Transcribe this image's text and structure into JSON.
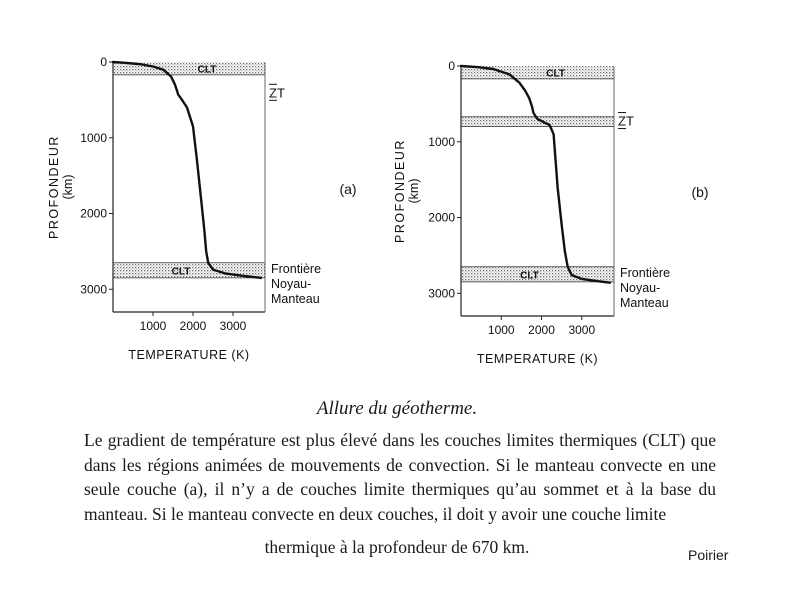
{
  "chart_data": [
    {
      "type": "line",
      "panel_label": "(a)",
      "ylabel": "PROFONDEUR",
      "yunit": "(km)",
      "xlabel": "TEMPERATURE  (K)",
      "xlim": [
        0,
        3800
      ],
      "ylim": [
        0,
        3300
      ],
      "xticks": [
        1000,
        2000,
        3000
      ],
      "xtick_labels": [
        "1000",
        "2000",
        "3000"
      ],
      "yticks": [
        0,
        1000,
        2000,
        3000
      ],
      "ytick_labels": [
        "0",
        "1000",
        "2000",
        "3000"
      ],
      "bands": [
        {
          "label": "CLT",
          "from": 0,
          "to": 170
        },
        {
          "label": "CLT",
          "from": 2650,
          "to": 2850
        }
      ],
      "annotations": {
        "zt": "ZT",
        "zt_depth": 400,
        "boundary": [
          "Frontière",
          "Noyau-",
          "Manteau"
        ],
        "boundary_depth": 2890
      },
      "series": [
        {
          "name": "géotherme",
          "x": [
            0,
            300,
            700,
            1000,
            1250,
            1450,
            1550,
            1600,
            1630,
            1700,
            1850,
            2000,
            2100,
            2200,
            2280,
            2330,
            2380,
            2500,
            2800,
            3200,
            3700
          ],
          "y": [
            0,
            10,
            30,
            60,
            100,
            190,
            300,
            380,
            430,
            480,
            600,
            850,
            1300,
            1800,
            2200,
            2500,
            2650,
            2740,
            2790,
            2820,
            2850
          ]
        }
      ]
    },
    {
      "type": "line",
      "panel_label": "(b)",
      "ylabel": "PROFONDEUR",
      "yunit": "(km)",
      "xlabel": "TEMPERATURE  (K)",
      "xlim": [
        0,
        3800
      ],
      "ylim": [
        0,
        3300
      ],
      "xticks": [
        1000,
        2000,
        3000
      ],
      "xtick_labels": [
        "1000",
        "2000",
        "3000"
      ],
      "yticks": [
        0,
        1000,
        2000,
        3000
      ],
      "ytick_labels": [
        "0",
        "1000",
        "2000",
        "3000"
      ],
      "bands": [
        {
          "label": "CLT",
          "from": 0,
          "to": 170
        },
        {
          "label": "CLT",
          "from": 670,
          "to": 800
        },
        {
          "label": "CLT",
          "from": 2650,
          "to": 2850
        }
      ],
      "annotations": {
        "zt": "ZT",
        "zt_depth": 720,
        "boundary": [
          "Frontière",
          "Noyau-",
          "Manteau"
        ],
        "boundary_depth": 2890
      },
      "series": [
        {
          "name": "géotherme",
          "x": [
            0,
            400,
            800,
            1200,
            1450,
            1600,
            1700,
            1760,
            1800,
            1900,
            2050,
            2200,
            2300,
            2400,
            2500,
            2580,
            2650,
            2750,
            3000,
            3400,
            3700
          ],
          "y": [
            0,
            15,
            40,
            110,
            220,
            330,
            430,
            530,
            620,
            700,
            740,
            780,
            900,
            1600,
            2100,
            2450,
            2650,
            2760,
            2810,
            2840,
            2860
          ]
        }
      ]
    }
  ],
  "caption": {
    "title": "Allure du géotherme.",
    "body": "Le gradient de température est plus élevé dans les couches limites thermiques (CLT) que dans les régions animées de mouvements de convection. Si le manteau convecte en une seule couche (a), il n’y a de couches limite thermiques qu’au sommet et à la base du manteau. Si le manteau convecte en deux couches, il doit y avoir une couche limite",
    "last_line": "thermique à la profondeur de 670 km."
  },
  "credit": "Poirier"
}
